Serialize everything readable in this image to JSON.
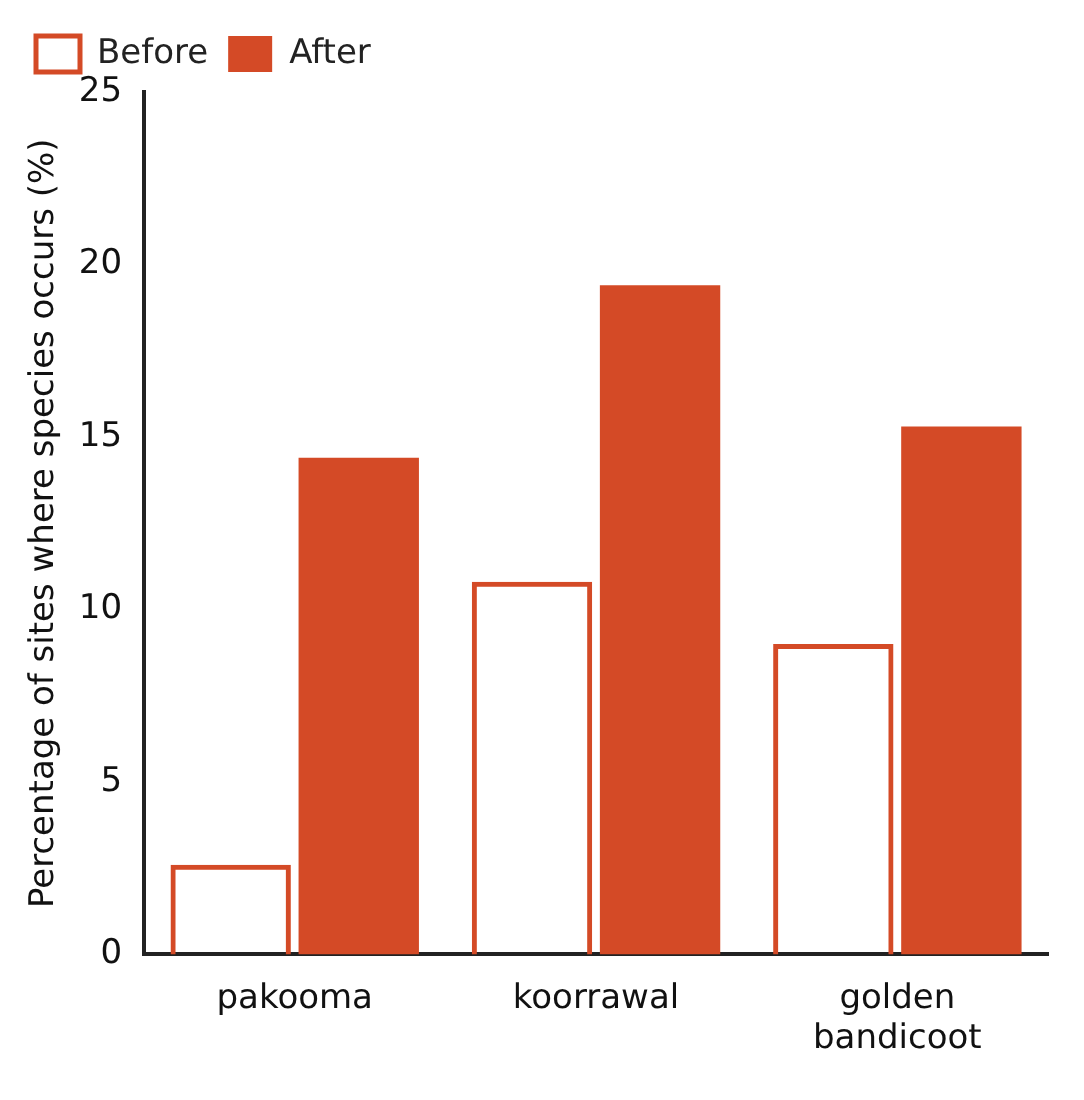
{
  "chart_data": {
    "type": "bar",
    "ylabel": "Percentage of sites where species occurs (%)",
    "categories": [
      "pakooma",
      "koorrawal",
      "golden bandicoot"
    ],
    "series": [
      {
        "name": "Before",
        "color": "#d44a26",
        "values": [
          2.6,
          10.8,
          9.0
        ]
      },
      {
        "name": "After",
        "color": "#d44a26",
        "values": [
          14.4,
          19.4,
          15.3
        ]
      }
    ],
    "ylim": [
      0,
      25
    ],
    "yticks": [
      0,
      5,
      10,
      15,
      20,
      25
    ],
    "grid": false,
    "legend": "top left"
  }
}
